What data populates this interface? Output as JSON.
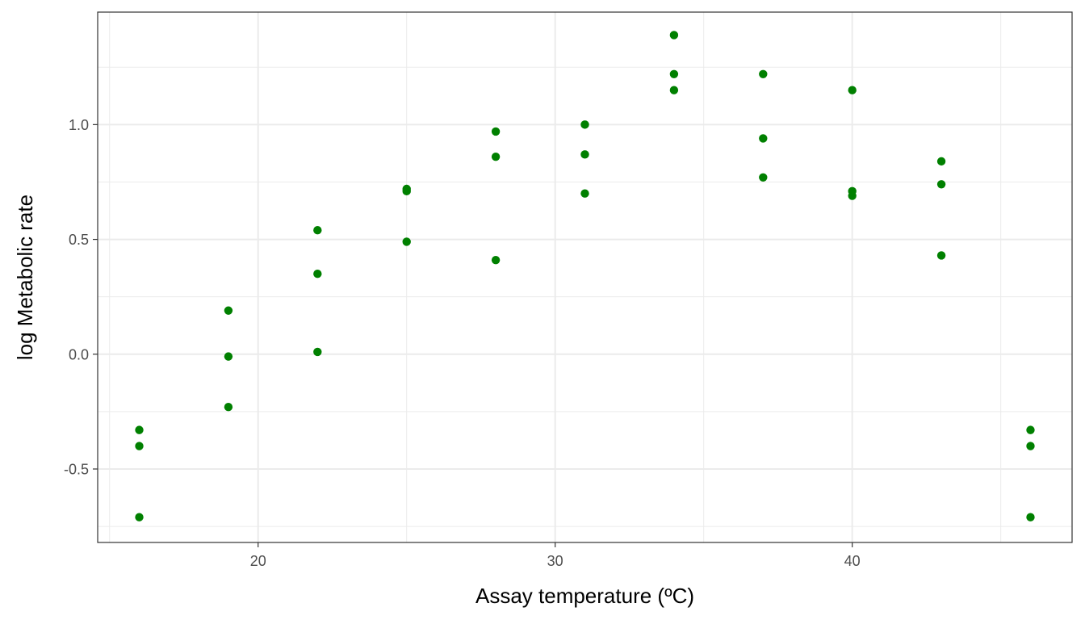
{
  "chart_data": {
    "type": "scatter",
    "title": "",
    "xlabel": "Assay temperature (ºC)",
    "ylabel": "log Metabolic rate",
    "xlim": [
      14.6,
      47.4
    ],
    "ylim": [
      -0.82,
      1.49
    ],
    "x_ticks": [
      20,
      30,
      40
    ],
    "x_tick_labels": [
      "20",
      "30",
      "40"
    ],
    "x_minor_ticks": [
      15,
      25,
      35,
      45
    ],
    "y_ticks": [
      -0.5,
      0.0,
      0.5,
      1.0
    ],
    "y_tick_labels": [
      "-0.5",
      "0.0",
      "0.5",
      "1.0"
    ],
    "y_minor_ticks": [
      -0.75,
      -0.25,
      0.25,
      0.75,
      1.25
    ],
    "grid": true,
    "legend": "none",
    "point_color": "#008000",
    "grid_color": "#ebebeb",
    "panel_border_color": "#333333",
    "series": [
      {
        "points": [
          {
            "x": 16,
            "y": -0.33
          },
          {
            "x": 16,
            "y": -0.4
          },
          {
            "x": 16,
            "y": -0.71
          },
          {
            "x": 19,
            "y": 0.19
          },
          {
            "x": 19,
            "y": -0.01
          },
          {
            "x": 19,
            "y": -0.23
          },
          {
            "x": 22,
            "y": 0.54
          },
          {
            "x": 22,
            "y": 0.35
          },
          {
            "x": 22,
            "y": 0.01
          },
          {
            "x": 25,
            "y": 0.72
          },
          {
            "x": 25,
            "y": 0.71
          },
          {
            "x": 25,
            "y": 0.49
          },
          {
            "x": 28,
            "y": 0.97
          },
          {
            "x": 28,
            "y": 0.86
          },
          {
            "x": 28,
            "y": 0.41
          },
          {
            "x": 31,
            "y": 1.0
          },
          {
            "x": 31,
            "y": 0.87
          },
          {
            "x": 31,
            "y": 0.7
          },
          {
            "x": 34,
            "y": 1.39
          },
          {
            "x": 34,
            "y": 1.22
          },
          {
            "x": 34,
            "y": 1.15
          },
          {
            "x": 37,
            "y": 1.22
          },
          {
            "x": 37,
            "y": 0.94
          },
          {
            "x": 37,
            "y": 0.77
          },
          {
            "x": 40,
            "y": 1.15
          },
          {
            "x": 40,
            "y": 0.71
          },
          {
            "x": 40,
            "y": 0.69
          },
          {
            "x": 43,
            "y": 0.84
          },
          {
            "x": 43,
            "y": 0.74
          },
          {
            "x": 43,
            "y": 0.43
          },
          {
            "x": 46,
            "y": -0.33
          },
          {
            "x": 46,
            "y": -0.4
          },
          {
            "x": 46,
            "y": -0.71
          }
        ]
      }
    ]
  }
}
